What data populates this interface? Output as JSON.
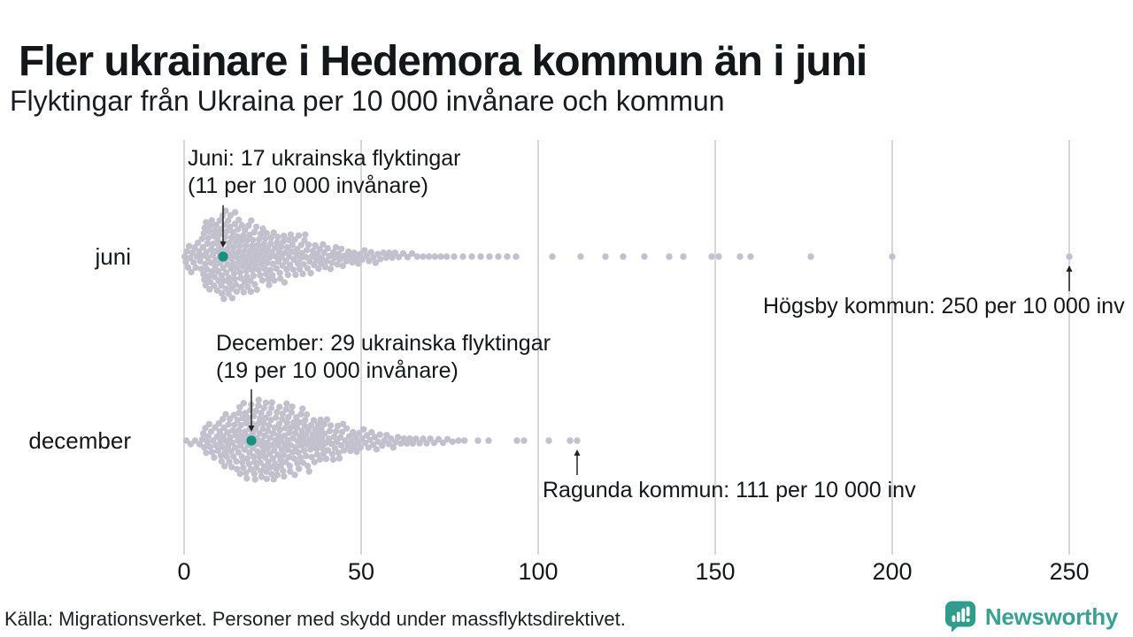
{
  "header": {
    "title": "Fler ukrainare i Hedemora kommun än i juni",
    "subtitle": "Flyktingar från Ukraina per 10 000 invånare och kommun"
  },
  "footer": {
    "source": "Källa: Migrationsverket. Personer med skydd under massflyktsdirektivet.",
    "brand": "Newsworthy"
  },
  "colors": {
    "dot": "#c3c0ce",
    "highlight": "#169180",
    "grid": "#d8d8dc",
    "annotation": "#222222",
    "brand_icon": "#2f9c8c",
    "brand_text": "#3aa092"
  },
  "chart_data": {
    "type": "beeswarm",
    "title": "Fler ukrainare i Hedemora kommun än i juni",
    "subtitle": "Flyktingar från Ukraina per 10 000 invånare och kommun",
    "unit": "flyktingar per 10 000 invånare och kommun",
    "xlim": [
      0,
      250
    ],
    "xticks": [
      0,
      50,
      100,
      150,
      200,
      250
    ],
    "grid": "vertical",
    "rows": [
      {
        "label": "juni",
        "highlight_value": 11,
        "highlight_municipality": "Hedemora kommun",
        "distribution_bins": [
          [
            0,
            5,
            16
          ],
          [
            5,
            10,
            40
          ],
          [
            10,
            15,
            48
          ],
          [
            15,
            20,
            40
          ],
          [
            20,
            25,
            32
          ],
          [
            25,
            30,
            26
          ],
          [
            30,
            35,
            22
          ],
          [
            35,
            40,
            16
          ],
          [
            40,
            45,
            13
          ],
          [
            45,
            50,
            9
          ],
          [
            50,
            55,
            8
          ],
          [
            55,
            60,
            6
          ],
          [
            60,
            65,
            4
          ],
          [
            65,
            70,
            3
          ],
          [
            70,
            75,
            3
          ],
          [
            75,
            80,
            2
          ],
          [
            80,
            85,
            2
          ],
          [
            85,
            90,
            2
          ],
          [
            90,
            95,
            2
          ]
        ],
        "outlier_values": [
          104,
          112,
          119,
          124,
          130,
          137,
          141,
          149,
          151,
          157,
          160,
          177,
          200,
          250
        ]
      },
      {
        "label": "december",
        "highlight_value": 19,
        "highlight_municipality": "Hedemora kommun",
        "distribution_bins": [
          [
            0,
            5,
            4
          ],
          [
            5,
            10,
            18
          ],
          [
            10,
            15,
            30
          ],
          [
            15,
            20,
            40
          ],
          [
            20,
            25,
            44
          ],
          [
            25,
            30,
            40
          ],
          [
            30,
            35,
            34
          ],
          [
            35,
            40,
            26
          ],
          [
            40,
            45,
            20
          ],
          [
            45,
            50,
            14
          ],
          [
            50,
            55,
            11
          ],
          [
            55,
            60,
            8
          ],
          [
            60,
            65,
            6
          ],
          [
            65,
            70,
            5
          ],
          [
            70,
            75,
            4
          ],
          [
            75,
            80,
            3
          ]
        ],
        "outlier_values": [
          83,
          86,
          94,
          96,
          103,
          109,
          111
        ]
      }
    ],
    "annotations": [
      {
        "row": 0,
        "target_value": 11,
        "direction": "down",
        "line1": "Juni: 17 ukrainska flyktingar",
        "line2": "(11 per 10 000 invånare)"
      },
      {
        "row": 0,
        "target_value": 250,
        "direction": "up",
        "line1": "Högsby kommun: 250 per 10 000 inv"
      },
      {
        "row": 1,
        "target_value": 19,
        "direction": "down",
        "line1": "December: 29 ukrainska flyktingar",
        "line2": "(19 per 10 000 invånare)"
      },
      {
        "row": 1,
        "target_value": 111,
        "direction": "up",
        "line1": "Ragunda kommun: 111 per 10 000 inv"
      }
    ]
  }
}
